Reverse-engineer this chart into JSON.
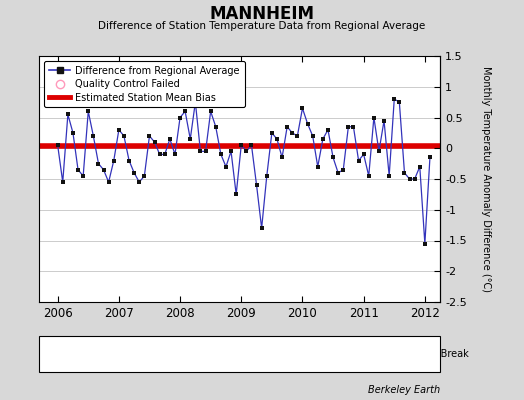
{
  "title": "MANNHEIM",
  "subtitle": "Difference of Station Temperature Data from Regional Average",
  "ylabel_right": "Monthly Temperature Anomaly Difference (°C)",
  "bias": 0.03,
  "ylim": [
    -2.5,
    1.5
  ],
  "xlim": [
    2005.7,
    2012.25
  ],
  "xticks": [
    2006,
    2007,
    2008,
    2009,
    2010,
    2011,
    2012
  ],
  "yticks": [
    -2.5,
    -2.0,
    -1.5,
    -1.0,
    -0.5,
    0.0,
    0.5,
    1.0,
    1.5
  ],
  "ytick_labels": [
    "-2.5",
    "-2",
    "-1.5",
    "-1",
    "-0.5",
    "0",
    "0.5",
    "1",
    "1.5"
  ],
  "background_color": "#d8d8d8",
  "plot_background": "#ffffff",
  "line_color": "#3333bb",
  "bias_color": "#dd0000",
  "dot_color": "#111111",
  "footer_text": "Berkeley Earth",
  "data": {
    "times": [
      2006.0,
      2006.083,
      2006.167,
      2006.25,
      2006.333,
      2006.417,
      2006.5,
      2006.583,
      2006.667,
      2006.75,
      2006.833,
      2006.917,
      2007.0,
      2007.083,
      2007.167,
      2007.25,
      2007.333,
      2007.417,
      2007.5,
      2007.583,
      2007.667,
      2007.75,
      2007.833,
      2007.917,
      2008.0,
      2008.083,
      2008.167,
      2008.25,
      2008.333,
      2008.417,
      2008.5,
      2008.583,
      2008.667,
      2008.75,
      2008.833,
      2008.917,
      2009.0,
      2009.083,
      2009.167,
      2009.25,
      2009.333,
      2009.417,
      2009.5,
      2009.583,
      2009.667,
      2009.75,
      2009.833,
      2009.917,
      2010.0,
      2010.083,
      2010.167,
      2010.25,
      2010.333,
      2010.417,
      2010.5,
      2010.583,
      2010.667,
      2010.75,
      2010.833,
      2010.917,
      2011.0,
      2011.083,
      2011.167,
      2011.25,
      2011.333,
      2011.417,
      2011.5,
      2011.583,
      2011.667,
      2011.75,
      2011.833,
      2011.917,
      2012.0,
      2012.083
    ],
    "values": [
      0.05,
      -0.55,
      0.55,
      0.25,
      -0.35,
      -0.45,
      0.6,
      0.2,
      -0.25,
      -0.35,
      -0.55,
      -0.2,
      0.3,
      0.2,
      -0.2,
      -0.4,
      -0.55,
      -0.45,
      0.2,
      0.1,
      -0.1,
      -0.1,
      0.15,
      -0.1,
      0.5,
      0.6,
      0.15,
      0.75,
      -0.05,
      -0.05,
      0.6,
      0.35,
      -0.1,
      -0.3,
      -0.05,
      -0.75,
      0.05,
      -0.05,
      0.05,
      -0.6,
      -1.3,
      -0.45,
      0.25,
      0.15,
      -0.15,
      0.35,
      0.25,
      0.2,
      0.65,
      0.4,
      0.2,
      -0.3,
      0.15,
      0.3,
      -0.15,
      -0.4,
      -0.35,
      0.35,
      0.35,
      -0.2,
      -0.1,
      -0.45,
      0.5,
      -0.05,
      0.45,
      -0.45,
      0.8,
      0.75,
      -0.4,
      -0.5,
      -0.5,
      -0.3,
      -1.55,
      -0.15
    ]
  }
}
